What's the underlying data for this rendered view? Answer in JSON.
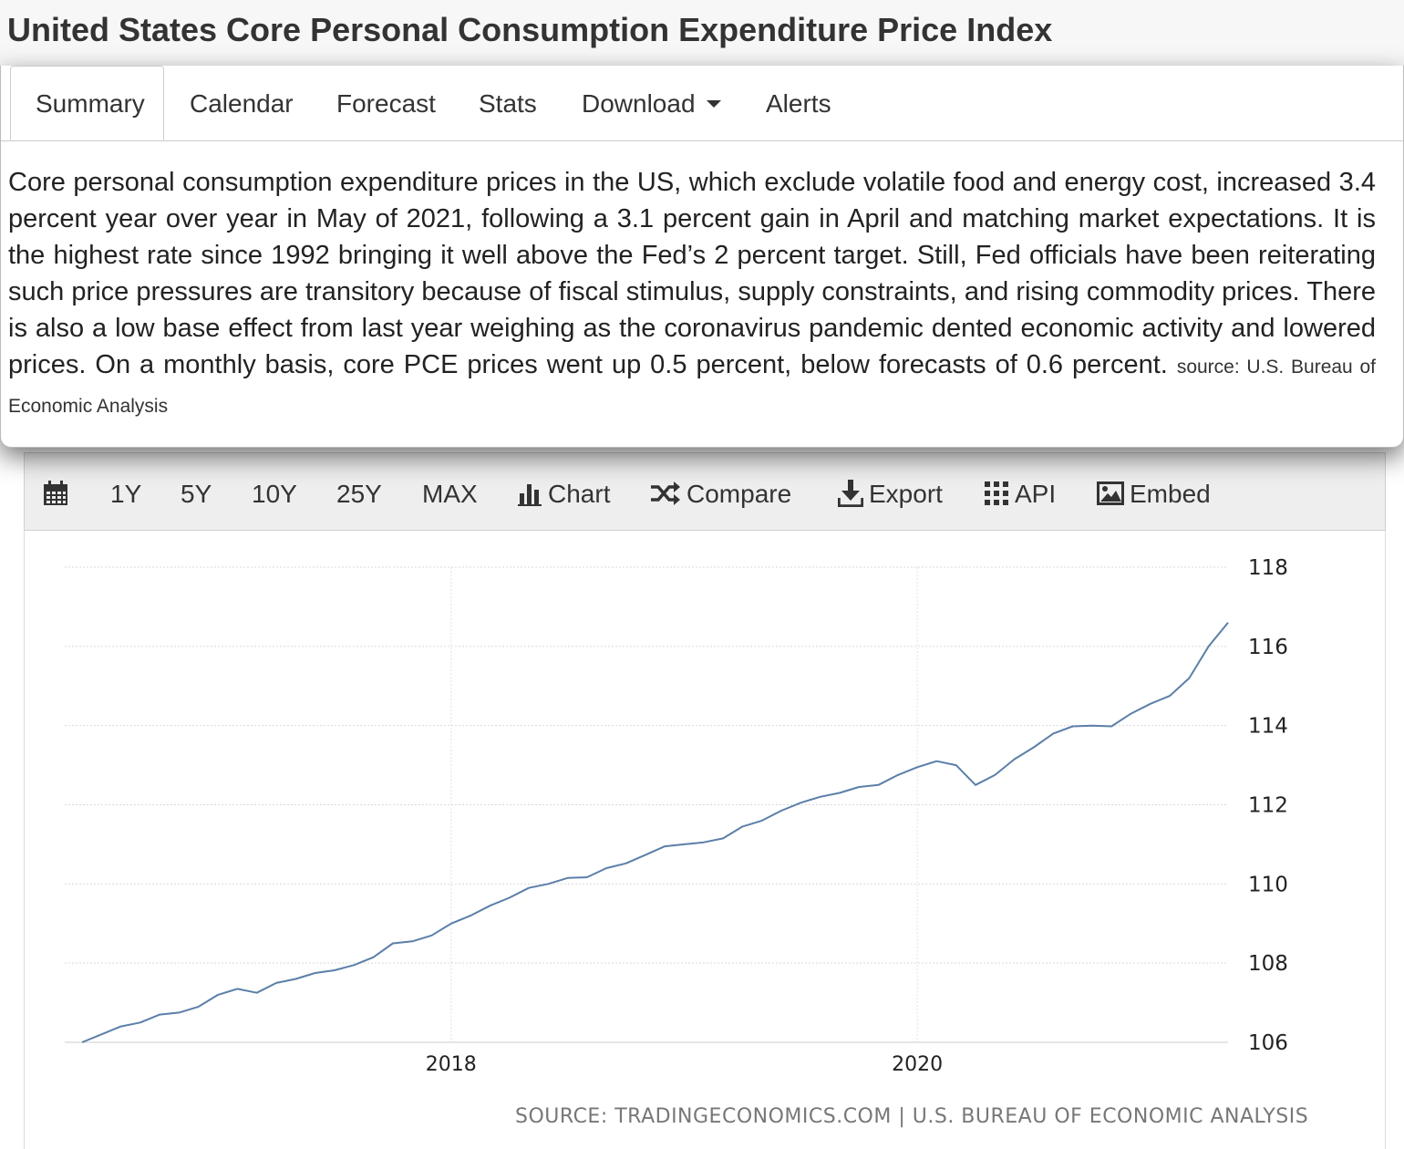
{
  "header": {
    "title": "United States Core Personal Consumption Expenditure Price Index"
  },
  "tabs": [
    {
      "label": "Summary",
      "active": true
    },
    {
      "label": "Calendar"
    },
    {
      "label": "Forecast"
    },
    {
      "label": "Stats"
    },
    {
      "label": "Download"
    },
    {
      "label": "Alerts"
    }
  ],
  "summary": {
    "text": "Core personal consumption expenditure prices in the US, which exclude volatile food and energy cost, increased 3.4 percent year over year in May of 2021, following a 3.1 percent gain in April and matching market expectations. It is the highest rate since 1992 bringing it well above the Fed’s 2 percent target. Still, Fed officials have been reiterating such price pressures are transitory because of fiscal stimulus, supply constraints, and rising commodity prices. There is also a low base effect from last year weighing as the coronavirus pandemic dented economic activity and lowered prices. On a monthly basis, core PCE prices went up 0.5 percent, below forecasts of 0.6 percent.",
    "source": "source: U.S. Bureau of Economic Analysis"
  },
  "toolbar": {
    "calendar_icon": "calendar-icon",
    "ranges": [
      "1Y",
      "5Y",
      "10Y",
      "25Y",
      "MAX"
    ],
    "chart_label": "Chart",
    "compare_label": "Compare",
    "export_label": "Export",
    "api_label": "API",
    "embed_label": "Embed"
  },
  "chart_source": "SOURCE: TRADINGECONOMICS.COM | U.S. BUREAU OF ECONOMIC ANALYSIS",
  "chart_data": {
    "type": "line",
    "title": "",
    "xlabel": "",
    "ylabel": "",
    "x_ticks": [
      "2018",
      "2020"
    ],
    "y_ticks": [
      106,
      108,
      110,
      112,
      114,
      116,
      118
    ],
    "ylim": [
      106,
      118
    ],
    "xlim": [
      "2016-06",
      "2021-05"
    ],
    "y_axis_side": "right",
    "grid": true,
    "line_color": "#5b7fa8",
    "series": [
      {
        "x": [
          "2016-06",
          "2016-07",
          "2016-08",
          "2016-09",
          "2016-10",
          "2016-11",
          "2016-12",
          "2017-01",
          "2017-02",
          "2017-03",
          "2017-04",
          "2017-05",
          "2017-06",
          "2017-07",
          "2017-08",
          "2017-09",
          "2017-10",
          "2017-11",
          "2017-12",
          "2018-01",
          "2018-02",
          "2018-03",
          "2018-04",
          "2018-05",
          "2018-06",
          "2018-07",
          "2018-08",
          "2018-09",
          "2018-10",
          "2018-11",
          "2018-12",
          "2019-01",
          "2019-02",
          "2019-03",
          "2019-04",
          "2019-05",
          "2019-06",
          "2019-07",
          "2019-08",
          "2019-09",
          "2019-10",
          "2019-11",
          "2019-12",
          "2020-01",
          "2020-02",
          "2020-03",
          "2020-04",
          "2020-05",
          "2020-06",
          "2020-07",
          "2020-08",
          "2020-09",
          "2020-10",
          "2020-11",
          "2020-12",
          "2021-01",
          "2021-02",
          "2021-03",
          "2021-04",
          "2021-05"
        ],
        "values": [
          106.0,
          106.2,
          106.4,
          106.5,
          106.7,
          106.75,
          106.9,
          107.2,
          107.35,
          107.25,
          107.5,
          107.6,
          107.75,
          107.82,
          107.95,
          108.15,
          108.5,
          108.55,
          108.7,
          109.0,
          109.2,
          109.45,
          109.65,
          109.9,
          110.0,
          110.15,
          110.17,
          110.4,
          110.52,
          110.73,
          110.95,
          111.0,
          111.05,
          111.15,
          111.45,
          111.6,
          111.85,
          112.05,
          112.2,
          112.3,
          112.45,
          112.5,
          112.75,
          112.95,
          113.1,
          113.0,
          112.5,
          112.75,
          113.15,
          113.45,
          113.8,
          113.98,
          114.0,
          113.98,
          114.3,
          114.55,
          114.75,
          115.2,
          116.0,
          116.6
        ]
      }
    ]
  }
}
